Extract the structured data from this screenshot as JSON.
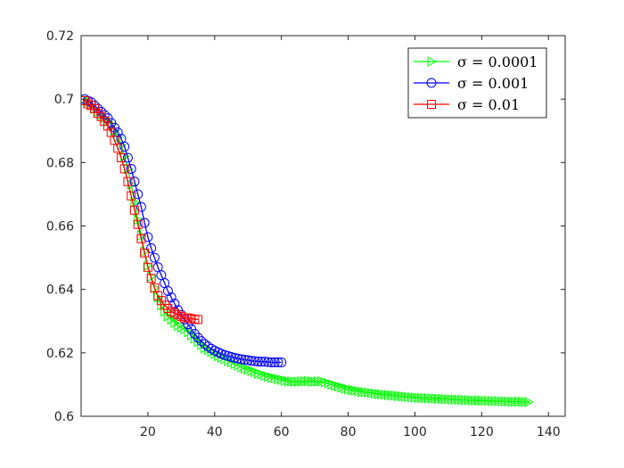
{
  "chart_data": {
    "type": "line",
    "title": "",
    "xlabel": "",
    "ylabel": "",
    "xlim": [
      0,
      145
    ],
    "ylim": [
      0.6,
      0.72
    ],
    "xticks": [
      20,
      40,
      60,
      80,
      100,
      120,
      140
    ],
    "yticks": [
      0.6,
      0.62,
      0.64,
      0.66,
      0.68,
      0.7,
      0.72
    ],
    "ytick_labels": [
      "0.6",
      "0.62",
      "0.64",
      "0.66",
      "0.68",
      "0.7",
      "0.72"
    ],
    "grid": false,
    "legend_position": "top-right",
    "series": [
      {
        "name": "σ = 0.0001",
        "color": "#00ff00",
        "marker": "triangle-right",
        "x": [
          1,
          2,
          3,
          4,
          5,
          6,
          7,
          8,
          9,
          10,
          11,
          12,
          13,
          14,
          15,
          16,
          17,
          18,
          19,
          20,
          21,
          22,
          23,
          24,
          25,
          26,
          27,
          28,
          29,
          30,
          31,
          32,
          33,
          34,
          35,
          36,
          37,
          38,
          39,
          40,
          41,
          42,
          43,
          44,
          45,
          46,
          47,
          48,
          49,
          50,
          51,
          52,
          53,
          54,
          55,
          56,
          57,
          58,
          59,
          60,
          61,
          62,
          63,
          64,
          65,
          66,
          67,
          68,
          69,
          70,
          71,
          72,
          73,
          74,
          75,
          76,
          77,
          78,
          79,
          80,
          81,
          82,
          83,
          84,
          85,
          86,
          87,
          88,
          89,
          90,
          91,
          92,
          93,
          94,
          95,
          96,
          97,
          98,
          99,
          100,
          101,
          102,
          103,
          104,
          105,
          106,
          107,
          108,
          109,
          110,
          111,
          112,
          113,
          114,
          115,
          116,
          117,
          118,
          119,
          120,
          121,
          122,
          123,
          124,
          125,
          126,
          127,
          128,
          129,
          130,
          131,
          132,
          133,
          134
        ],
        "y": [
          0.7,
          0.699,
          0.698,
          0.697,
          0.696,
          0.695,
          0.694,
          0.693,
          0.692,
          0.69,
          0.688,
          0.6855,
          0.682,
          0.678,
          0.673,
          0.6675,
          0.662,
          0.657,
          0.652,
          0.6475,
          0.644,
          0.6405,
          0.6375,
          0.635,
          0.633,
          0.6315,
          0.6305,
          0.6295,
          0.6285,
          0.628,
          0.6275,
          0.6265,
          0.6255,
          0.6245,
          0.6235,
          0.6225,
          0.6215,
          0.621,
          0.6203,
          0.6197,
          0.619,
          0.6185,
          0.618,
          0.6175,
          0.617,
          0.6165,
          0.616,
          0.6155,
          0.615,
          0.6147,
          0.6143,
          0.614,
          0.6135,
          0.6132,
          0.6128,
          0.6125,
          0.6122,
          0.612,
          0.6117,
          0.6115,
          0.6112,
          0.611,
          0.611,
          0.6109,
          0.6109,
          0.611,
          0.611,
          0.6111,
          0.611,
          0.6109,
          0.611,
          0.611,
          0.6107,
          0.6104,
          0.61,
          0.6097,
          0.6094,
          0.6091,
          0.6088,
          0.6085,
          0.6083,
          0.6081,
          0.6079,
          0.6077,
          0.6076,
          0.6075,
          0.6073,
          0.6072,
          0.607,
          0.6069,
          0.6068,
          0.6067,
          0.6066,
          0.6065,
          0.6064,
          0.6063,
          0.6062,
          0.6061,
          0.606,
          0.6059,
          0.6058,
          0.6058,
          0.6057,
          0.6057,
          0.6056,
          0.6056,
          0.6055,
          0.6055,
          0.6054,
          0.6054,
          0.6053,
          0.6053,
          0.6052,
          0.6052,
          0.6051,
          0.6051,
          0.605,
          0.605,
          0.605,
          0.6049,
          0.6049,
          0.6049,
          0.6048,
          0.6048,
          0.6048,
          0.6047,
          0.6047,
          0.6047,
          0.6046,
          0.6046,
          0.6046,
          0.6046,
          0.6045,
          0.6045
        ]
      },
      {
        "name": "σ = 0.001",
        "color": "#0000ff",
        "marker": "circle",
        "x": [
          1,
          2,
          3,
          4,
          5,
          6,
          7,
          8,
          9,
          10,
          11,
          12,
          13,
          14,
          15,
          16,
          17,
          18,
          19,
          20,
          21,
          22,
          23,
          24,
          25,
          26,
          27,
          28,
          29,
          30,
          31,
          32,
          33,
          34,
          35,
          36,
          37,
          38,
          39,
          40,
          41,
          42,
          43,
          44,
          45,
          46,
          47,
          48,
          49,
          50,
          51,
          52,
          53,
          54,
          55,
          56,
          57,
          58,
          59,
          60
        ],
        "y": [
          0.7,
          0.6995,
          0.699,
          0.698,
          0.697,
          0.696,
          0.695,
          0.694,
          0.6925,
          0.691,
          0.6895,
          0.6875,
          0.685,
          0.6815,
          0.678,
          0.674,
          0.67,
          0.666,
          0.661,
          0.6565,
          0.653,
          0.65,
          0.647,
          0.6445,
          0.642,
          0.6395,
          0.6375,
          0.6355,
          0.6335,
          0.632,
          0.6305,
          0.629,
          0.6275,
          0.626,
          0.6248,
          0.6237,
          0.6228,
          0.622,
          0.6213,
          0.6207,
          0.6202,
          0.6197,
          0.6193,
          0.619,
          0.6187,
          0.6184,
          0.6182,
          0.618,
          0.6178,
          0.6177,
          0.6175,
          0.6174,
          0.6173,
          0.6172,
          0.6172,
          0.6171,
          0.617,
          0.617,
          0.617,
          0.617
        ]
      },
      {
        "name": "σ = 0.01",
        "color": "#ff0000",
        "marker": "square",
        "x": [
          1,
          2,
          3,
          4,
          5,
          6,
          7,
          8,
          9,
          10,
          11,
          12,
          13,
          14,
          15,
          16,
          17,
          18,
          19,
          20,
          21,
          22,
          23,
          24,
          25,
          26,
          27,
          28,
          29,
          30,
          31,
          32,
          33,
          34,
          35
        ],
        "y": [
          0.6995,
          0.6985,
          0.698,
          0.697,
          0.6955,
          0.6945,
          0.693,
          0.6915,
          0.6895,
          0.687,
          0.6845,
          0.6815,
          0.678,
          0.674,
          0.6695,
          0.665,
          0.6605,
          0.656,
          0.6515,
          0.647,
          0.6435,
          0.6405,
          0.638,
          0.6365,
          0.635,
          0.634,
          0.633,
          0.6325,
          0.632,
          0.6315,
          0.631,
          0.631,
          0.6308,
          0.6306,
          0.6305
        ]
      }
    ]
  }
}
